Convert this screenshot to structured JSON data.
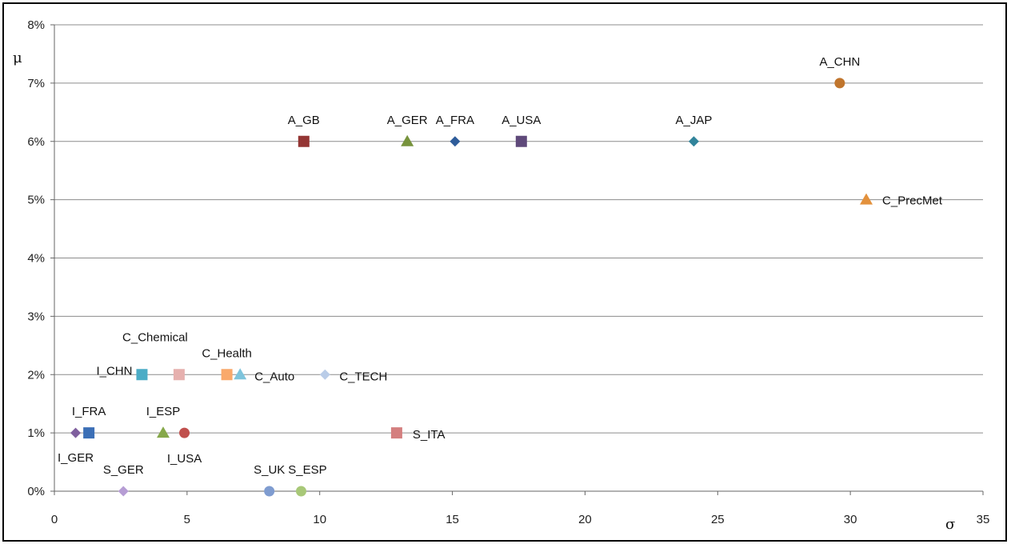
{
  "chart_data": {
    "type": "scatter",
    "title": "",
    "xlabel": "σ",
    "ylabel": "μ",
    "xlim": [
      0,
      35
    ],
    "ylim": [
      0,
      8
    ],
    "x_ticks": [
      "0",
      "5",
      "10",
      "15",
      "20",
      "25",
      "30",
      "35"
    ],
    "y_ticks": [
      "0%",
      "1%",
      "2%",
      "3%",
      "4%",
      "5%",
      "6%",
      "7%",
      "8%"
    ],
    "grid": "horizontal",
    "points": [
      {
        "label": "A_CHN",
        "x": 29.6,
        "y": 7,
        "marker": "circle",
        "color": "#C0752D"
      },
      {
        "label": "A_GB",
        "x": 9.4,
        "y": 6,
        "marker": "square",
        "color": "#943634"
      },
      {
        "label": "A_GER",
        "x": 13.3,
        "y": 6,
        "marker": "triangle",
        "color": "#77933C"
      },
      {
        "label": "A_FRA",
        "x": 15.1,
        "y": 6,
        "marker": "diamond",
        "color": "#2E5C9A"
      },
      {
        "label": "A_USA",
        "x": 17.6,
        "y": 6,
        "marker": "square",
        "color": "#5F497A"
      },
      {
        "label": "A_JAP",
        "x": 24.1,
        "y": 6,
        "marker": "diamond",
        "color": "#31849B"
      },
      {
        "label": "C_PrecMet",
        "x": 30.6,
        "y": 5,
        "marker": "triangle",
        "color": "#E3913C"
      },
      {
        "label": "I_CHN",
        "x": 3.3,
        "y": 2,
        "marker": "square",
        "color": "#4BACC6"
      },
      {
        "label": "C_Chemical",
        "x": 4.7,
        "y": 2,
        "marker": "square",
        "color": "#E6B0AE"
      },
      {
        "label": "C_Health",
        "x": 6.5,
        "y": 2,
        "marker": "square",
        "color": "#F9A96B"
      },
      {
        "label": "C_Auto",
        "x": 7.0,
        "y": 2,
        "marker": "triangle",
        "color": "#7EC4DC"
      },
      {
        "label": "C_TECH",
        "x": 10.2,
        "y": 2,
        "marker": "diamond",
        "color": "#B9CCE8"
      },
      {
        "label": "I_FRA",
        "x": 1.3,
        "y": 1,
        "marker": "square",
        "color": "#3C6FB6"
      },
      {
        "label": "I_GER",
        "x": 0.8,
        "y": 1,
        "marker": "diamond",
        "color": "#7F5F9E"
      },
      {
        "label": "I_ESP",
        "x": 4.1,
        "y": 1,
        "marker": "triangle",
        "color": "#86A84A"
      },
      {
        "label": "I_USA",
        "x": 4.9,
        "y": 1,
        "marker": "circle",
        "color": "#C0504D"
      },
      {
        "label": "S_ITA",
        "x": 12.9,
        "y": 1,
        "marker": "square",
        "color": "#D47F7F"
      },
      {
        "label": "S_GER",
        "x": 2.6,
        "y": 0,
        "marker": "diamond",
        "color": "#B69DD4"
      },
      {
        "label": "S_UK",
        "x": 8.1,
        "y": 0,
        "marker": "circle",
        "color": "#7F9CD0"
      },
      {
        "label": "S_ESP",
        "x": 9.3,
        "y": 0,
        "marker": "circle",
        "color": "#A8C878"
      }
    ]
  }
}
